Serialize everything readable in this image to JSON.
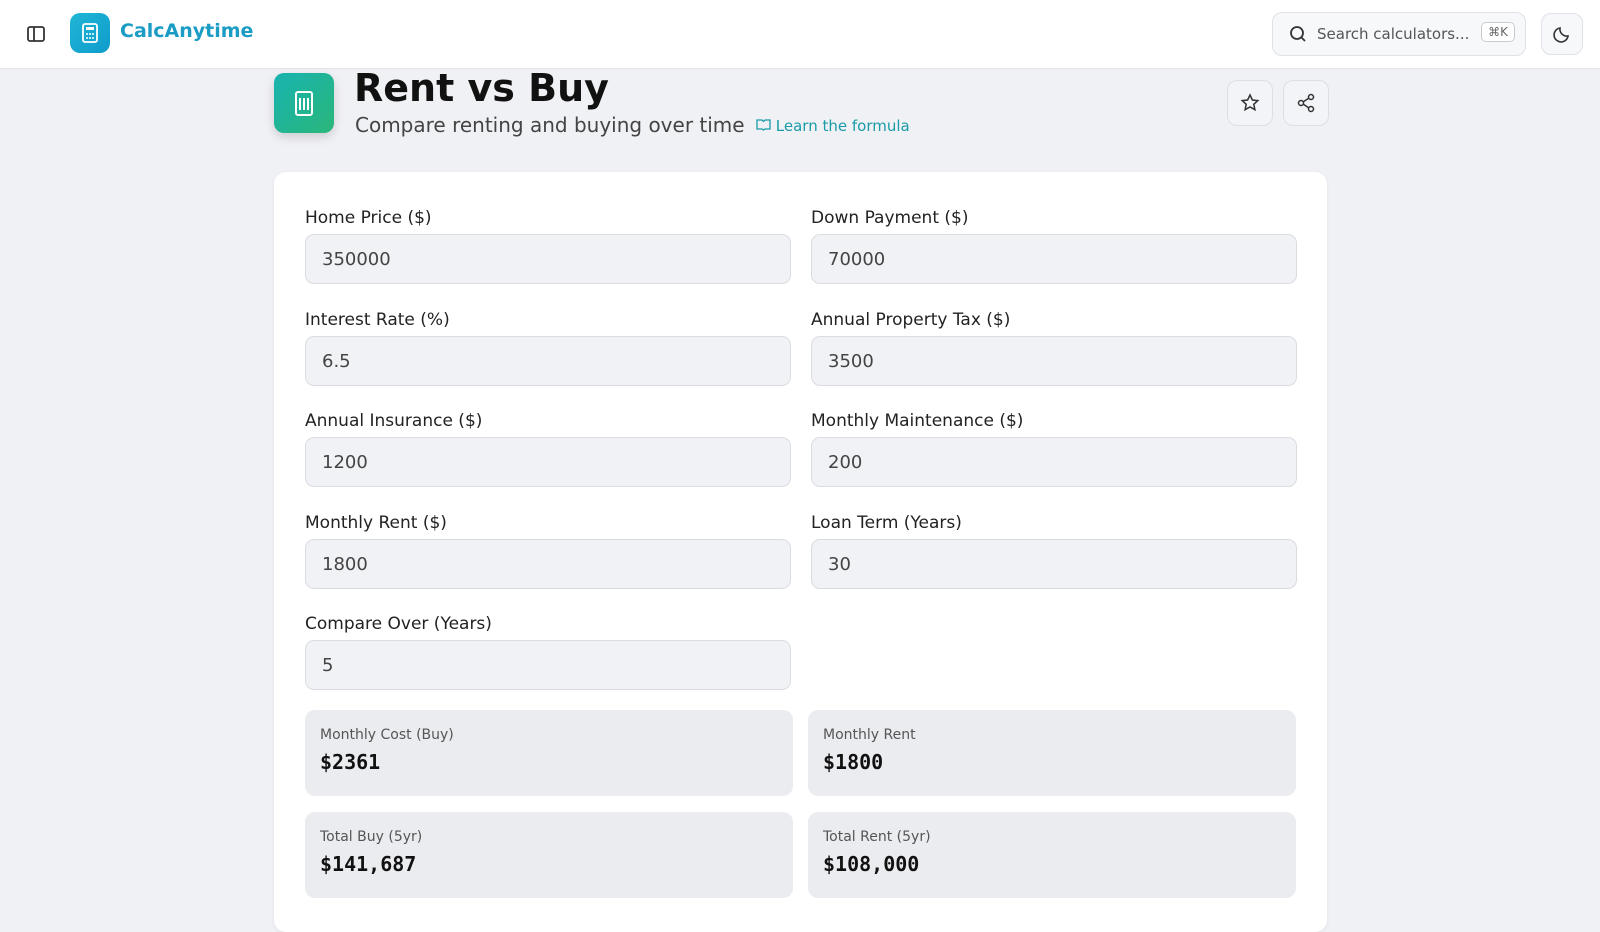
{
  "header": {
    "brand": "CalcAnytime",
    "search_placeholder": "Search calculators...",
    "shortcut": "⌘K"
  },
  "page": {
    "title": "Rent vs Buy",
    "subtitle": "Compare renting and buying over time",
    "formula_link": "Learn the formula"
  },
  "form": {
    "fields": [
      {
        "label": "Home Price ($)",
        "value": "350000"
      },
      {
        "label": "Down Payment ($)",
        "value": "70000"
      },
      {
        "label": "Interest Rate (%)",
        "value": "6.5"
      },
      {
        "label": "Annual Property Tax ($)",
        "value": "3500"
      },
      {
        "label": "Annual Insurance ($)",
        "value": "1200"
      },
      {
        "label": "Monthly Maintenance ($)",
        "value": "200"
      },
      {
        "label": "Monthly Rent ($)",
        "value": "1800"
      },
      {
        "label": "Loan Term (Years)",
        "value": "30"
      },
      {
        "label": "Compare Over (Years)",
        "value": "5"
      }
    ]
  },
  "results": [
    {
      "label": "Monthly Cost (Buy)",
      "value": "$2361"
    },
    {
      "label": "Monthly Rent",
      "value": "$1800"
    },
    {
      "label": "Total Buy (5yr)",
      "value": "$141,687"
    },
    {
      "label": "Total Rent (5yr)",
      "value": "$108,000"
    }
  ]
}
